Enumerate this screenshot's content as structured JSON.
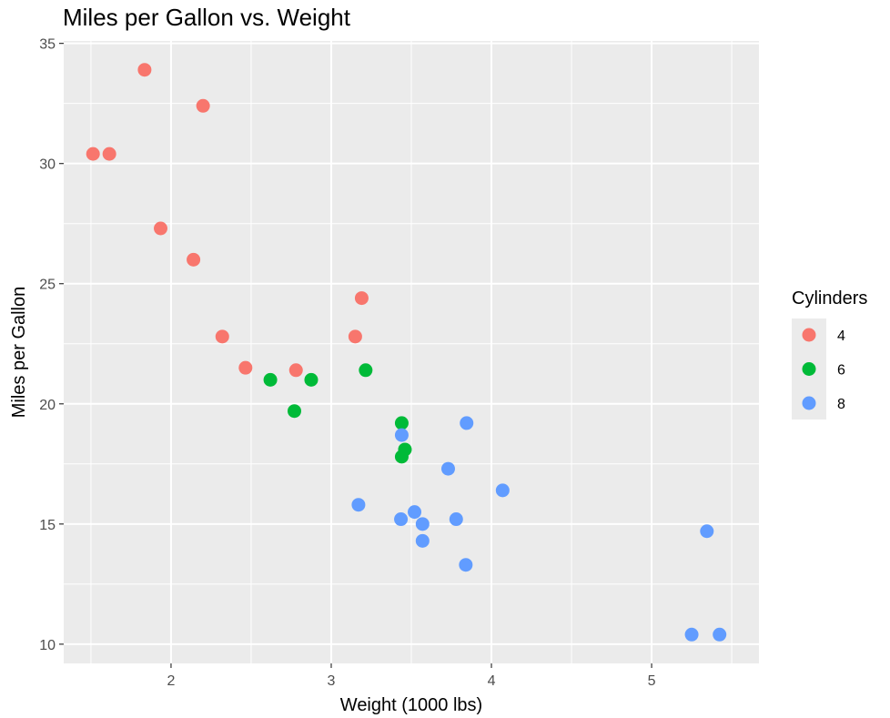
{
  "chart_data": {
    "type": "scatter",
    "title": "Miles per Gallon vs. Weight",
    "xlabel": "Weight (1000 lbs)",
    "ylabel": "Miles per Gallon",
    "xlim": [
      1.33,
      5.67
    ],
    "ylim": [
      9.2,
      35.1
    ],
    "x_ticks": [
      2,
      3,
      4,
      5
    ],
    "y_ticks": [
      10,
      15,
      20,
      25,
      30,
      35
    ],
    "grid": true,
    "background_color": "#ebebeb",
    "legend": {
      "title": "Cylinders",
      "position": "right",
      "entries": [
        {
          "label": "4",
          "color": "#f8766d"
        },
        {
          "label": "6",
          "color": "#00ba38"
        },
        {
          "label": "8",
          "color": "#619cff"
        }
      ]
    },
    "series": [
      {
        "name": "4",
        "color": "#f8766d",
        "points": [
          {
            "x": 1.513,
            "y": 30.4
          },
          {
            "x": 1.615,
            "y": 30.4
          },
          {
            "x": 1.835,
            "y": 33.9
          },
          {
            "x": 1.935,
            "y": 27.3
          },
          {
            "x": 2.14,
            "y": 26.0
          },
          {
            "x": 2.2,
            "y": 32.4
          },
          {
            "x": 2.32,
            "y": 22.8
          },
          {
            "x": 2.465,
            "y": 21.5
          },
          {
            "x": 2.78,
            "y": 21.4
          },
          {
            "x": 3.15,
            "y": 22.8
          },
          {
            "x": 3.19,
            "y": 24.4
          }
        ]
      },
      {
        "name": "6",
        "color": "#00ba38",
        "points": [
          {
            "x": 2.62,
            "y": 21.0
          },
          {
            "x": 2.77,
            "y": 19.7
          },
          {
            "x": 2.875,
            "y": 21.0
          },
          {
            "x": 3.215,
            "y": 21.4
          },
          {
            "x": 3.44,
            "y": 19.2
          },
          {
            "x": 3.44,
            "y": 17.8
          },
          {
            "x": 3.46,
            "y": 18.1
          }
        ]
      },
      {
        "name": "8",
        "color": "#619cff",
        "points": [
          {
            "x": 3.17,
            "y": 15.8
          },
          {
            "x": 3.435,
            "y": 15.2
          },
          {
            "x": 3.44,
            "y": 18.7
          },
          {
            "x": 3.52,
            "y": 15.5
          },
          {
            "x": 3.57,
            "y": 14.3
          },
          {
            "x": 3.57,
            "y": 15.0
          },
          {
            "x": 3.73,
            "y": 17.3
          },
          {
            "x": 3.78,
            "y": 15.2
          },
          {
            "x": 3.84,
            "y": 13.3
          },
          {
            "x": 3.845,
            "y": 19.2
          },
          {
            "x": 4.07,
            "y": 16.4
          },
          {
            "x": 5.25,
            "y": 10.4
          },
          {
            "x": 5.345,
            "y": 14.7
          },
          {
            "x": 5.424,
            "y": 10.4
          }
        ]
      }
    ]
  }
}
